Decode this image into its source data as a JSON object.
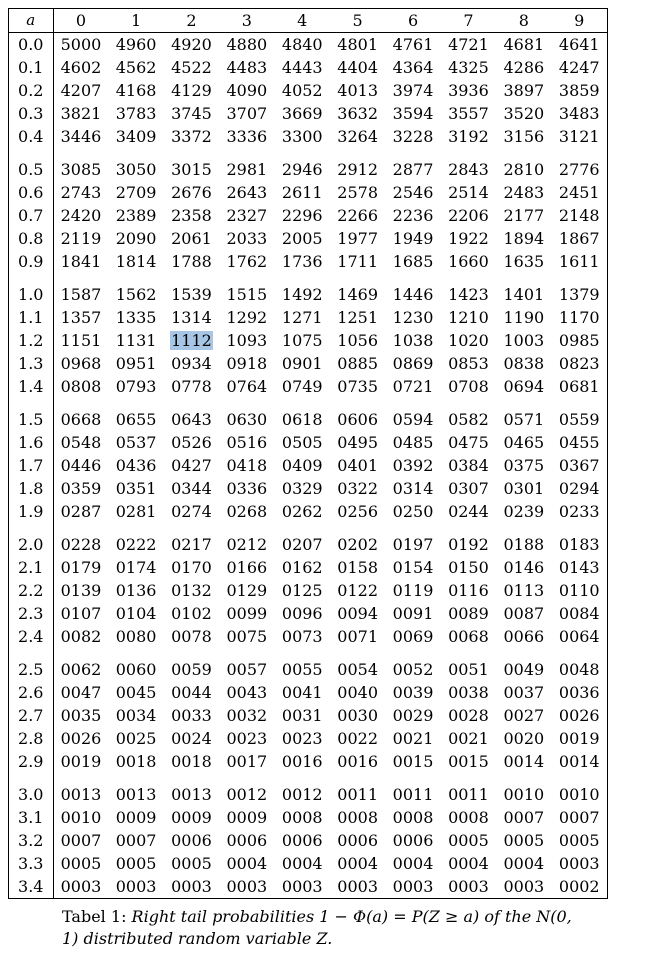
{
  "columns": [
    "a",
    "0",
    "1",
    "2",
    "3",
    "4",
    "5",
    "6",
    "7",
    "8",
    "9"
  ],
  "highlight": {
    "row": "1.2",
    "col": 2,
    "color": "#a7c6e5"
  },
  "groups": [
    [
      {
        "a": "0.0",
        "v": [
          "5000",
          "4960",
          "4920",
          "4880",
          "4840",
          "4801",
          "4761",
          "4721",
          "4681",
          "4641"
        ]
      },
      {
        "a": "0.1",
        "v": [
          "4602",
          "4562",
          "4522",
          "4483",
          "4443",
          "4404",
          "4364",
          "4325",
          "4286",
          "4247"
        ]
      },
      {
        "a": "0.2",
        "v": [
          "4207",
          "4168",
          "4129",
          "4090",
          "4052",
          "4013",
          "3974",
          "3936",
          "3897",
          "3859"
        ]
      },
      {
        "a": "0.3",
        "v": [
          "3821",
          "3783",
          "3745",
          "3707",
          "3669",
          "3632",
          "3594",
          "3557",
          "3520",
          "3483"
        ]
      },
      {
        "a": "0.4",
        "v": [
          "3446",
          "3409",
          "3372",
          "3336",
          "3300",
          "3264",
          "3228",
          "3192",
          "3156",
          "3121"
        ]
      }
    ],
    [
      {
        "a": "0.5",
        "v": [
          "3085",
          "3050",
          "3015",
          "2981",
          "2946",
          "2912",
          "2877",
          "2843",
          "2810",
          "2776"
        ]
      },
      {
        "a": "0.6",
        "v": [
          "2743",
          "2709",
          "2676",
          "2643",
          "2611",
          "2578",
          "2546",
          "2514",
          "2483",
          "2451"
        ]
      },
      {
        "a": "0.7",
        "v": [
          "2420",
          "2389",
          "2358",
          "2327",
          "2296",
          "2266",
          "2236",
          "2206",
          "2177",
          "2148"
        ]
      },
      {
        "a": "0.8",
        "v": [
          "2119",
          "2090",
          "2061",
          "2033",
          "2005",
          "1977",
          "1949",
          "1922",
          "1894",
          "1867"
        ]
      },
      {
        "a": "0.9",
        "v": [
          "1841",
          "1814",
          "1788",
          "1762",
          "1736",
          "1711",
          "1685",
          "1660",
          "1635",
          "1611"
        ]
      }
    ],
    [
      {
        "a": "1.0",
        "v": [
          "1587",
          "1562",
          "1539",
          "1515",
          "1492",
          "1469",
          "1446",
          "1423",
          "1401",
          "1379"
        ]
      },
      {
        "a": "1.1",
        "v": [
          "1357",
          "1335",
          "1314",
          "1292",
          "1271",
          "1251",
          "1230",
          "1210",
          "1190",
          "1170"
        ]
      },
      {
        "a": "1.2",
        "v": [
          "1151",
          "1131",
          "1112",
          "1093",
          "1075",
          "1056",
          "1038",
          "1020",
          "1003",
          "0985"
        ]
      },
      {
        "a": "1.3",
        "v": [
          "0968",
          "0951",
          "0934",
          "0918",
          "0901",
          "0885",
          "0869",
          "0853",
          "0838",
          "0823"
        ]
      },
      {
        "a": "1.4",
        "v": [
          "0808",
          "0793",
          "0778",
          "0764",
          "0749",
          "0735",
          "0721",
          "0708",
          "0694",
          "0681"
        ]
      }
    ],
    [
      {
        "a": "1.5",
        "v": [
          "0668",
          "0655",
          "0643",
          "0630",
          "0618",
          "0606",
          "0594",
          "0582",
          "0571",
          "0559"
        ]
      },
      {
        "a": "1.6",
        "v": [
          "0548",
          "0537",
          "0526",
          "0516",
          "0505",
          "0495",
          "0485",
          "0475",
          "0465",
          "0455"
        ]
      },
      {
        "a": "1.7",
        "v": [
          "0446",
          "0436",
          "0427",
          "0418",
          "0409",
          "0401",
          "0392",
          "0384",
          "0375",
          "0367"
        ]
      },
      {
        "a": "1.8",
        "v": [
          "0359",
          "0351",
          "0344",
          "0336",
          "0329",
          "0322",
          "0314",
          "0307",
          "0301",
          "0294"
        ]
      },
      {
        "a": "1.9",
        "v": [
          "0287",
          "0281",
          "0274",
          "0268",
          "0262",
          "0256",
          "0250",
          "0244",
          "0239",
          "0233"
        ]
      }
    ],
    [
      {
        "a": "2.0",
        "v": [
          "0228",
          "0222",
          "0217",
          "0212",
          "0207",
          "0202",
          "0197",
          "0192",
          "0188",
          "0183"
        ]
      },
      {
        "a": "2.1",
        "v": [
          "0179",
          "0174",
          "0170",
          "0166",
          "0162",
          "0158",
          "0154",
          "0150",
          "0146",
          "0143"
        ]
      },
      {
        "a": "2.2",
        "v": [
          "0139",
          "0136",
          "0132",
          "0129",
          "0125",
          "0122",
          "0119",
          "0116",
          "0113",
          "0110"
        ]
      },
      {
        "a": "2.3",
        "v": [
          "0107",
          "0104",
          "0102",
          "0099",
          "0096",
          "0094",
          "0091",
          "0089",
          "0087",
          "0084"
        ]
      },
      {
        "a": "2.4",
        "v": [
          "0082",
          "0080",
          "0078",
          "0075",
          "0073",
          "0071",
          "0069",
          "0068",
          "0066",
          "0064"
        ]
      }
    ],
    [
      {
        "a": "2.5",
        "v": [
          "0062",
          "0060",
          "0059",
          "0057",
          "0055",
          "0054",
          "0052",
          "0051",
          "0049",
          "0048"
        ]
      },
      {
        "a": "2.6",
        "v": [
          "0047",
          "0045",
          "0044",
          "0043",
          "0041",
          "0040",
          "0039",
          "0038",
          "0037",
          "0036"
        ]
      },
      {
        "a": "2.7",
        "v": [
          "0035",
          "0034",
          "0033",
          "0032",
          "0031",
          "0030",
          "0029",
          "0028",
          "0027",
          "0026"
        ]
      },
      {
        "a": "2.8",
        "v": [
          "0026",
          "0025",
          "0024",
          "0023",
          "0023",
          "0022",
          "0021",
          "0021",
          "0020",
          "0019"
        ]
      },
      {
        "a": "2.9",
        "v": [
          "0019",
          "0018",
          "0018",
          "0017",
          "0016",
          "0016",
          "0015",
          "0015",
          "0014",
          "0014"
        ]
      }
    ],
    [
      {
        "a": "3.0",
        "v": [
          "0013",
          "0013",
          "0013",
          "0012",
          "0012",
          "0011",
          "0011",
          "0011",
          "0010",
          "0010"
        ]
      },
      {
        "a": "3.1",
        "v": [
          "0010",
          "0009",
          "0009",
          "0009",
          "0008",
          "0008",
          "0008",
          "0008",
          "0007",
          "0007"
        ]
      },
      {
        "a": "3.2",
        "v": [
          "0007",
          "0007",
          "0006",
          "0006",
          "0006",
          "0006",
          "0006",
          "0005",
          "0005",
          "0005"
        ]
      },
      {
        "a": "3.3",
        "v": [
          "0005",
          "0005",
          "0005",
          "0004",
          "0004",
          "0004",
          "0004",
          "0004",
          "0004",
          "0003"
        ]
      },
      {
        "a": "3.4",
        "v": [
          "0003",
          "0003",
          "0003",
          "0003",
          "0003",
          "0003",
          "0003",
          "0003",
          "0003",
          "0002"
        ]
      }
    ]
  ],
  "caption": {
    "label": "Tabel 1:",
    "text": "Right tail probabilities 1 − Φ(a) = P(Z ≥ a) of the N(0, 1) distributed random variable Z."
  }
}
